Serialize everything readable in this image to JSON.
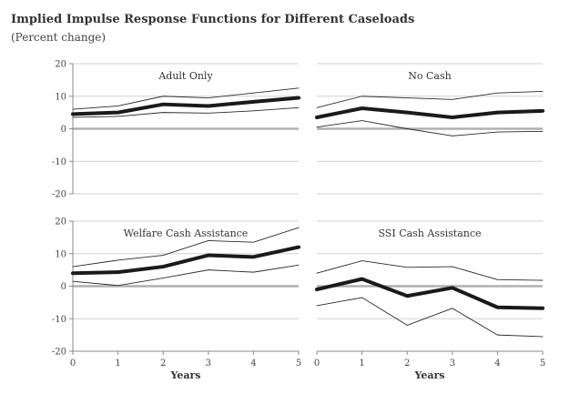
{
  "title": "Implied Impulse Response Functions for Different Caseloads",
  "subtitle": "(Percent change)",
  "chart_data": [
    {
      "type": "line",
      "title": "Adult Only",
      "xlabel": "",
      "ylabel": "",
      "x": [
        0,
        1,
        2,
        3,
        4,
        5
      ],
      "xlim": [
        0,
        5
      ],
      "ylim": [
        -20,
        20
      ],
      "yticks": [
        -20,
        -10,
        0,
        10,
        20
      ],
      "xticks": [],
      "series": [
        {
          "role": "upper",
          "values": [
            6,
            7,
            10,
            9.5,
            11,
            12.5
          ]
        },
        {
          "role": "estimate",
          "values": [
            4.5,
            5,
            7.5,
            7,
            8.3,
            9.5
          ]
        },
        {
          "role": "lower",
          "values": [
            3.5,
            3.8,
            5,
            4.8,
            5.5,
            6.5
          ]
        }
      ]
    },
    {
      "type": "line",
      "title": "No Cash",
      "xlabel": "",
      "ylabel": "",
      "x": [
        0,
        1,
        2,
        3,
        4,
        5
      ],
      "xlim": [
        0,
        5
      ],
      "ylim": [
        -20,
        20
      ],
      "yticks": [],
      "xticks": [],
      "series": [
        {
          "role": "upper",
          "values": [
            6.5,
            10,
            9.5,
            9,
            11,
            11.5
          ]
        },
        {
          "role": "estimate",
          "values": [
            3.5,
            6.3,
            5,
            3.5,
            5,
            5.5
          ]
        },
        {
          "role": "lower",
          "values": [
            0.5,
            2.5,
            0,
            -2.2,
            -1,
            -0.8
          ]
        }
      ]
    },
    {
      "type": "line",
      "title": "Welfare Cash Assistance",
      "xlabel": "Years",
      "ylabel": "",
      "x": [
        0,
        1,
        2,
        3,
        4,
        5
      ],
      "xlim": [
        0,
        5
      ],
      "ylim": [
        -20,
        20
      ],
      "yticks": [
        -20,
        -10,
        0,
        10,
        20
      ],
      "xticks": [
        0,
        1,
        2,
        3,
        4,
        5
      ],
      "series": [
        {
          "role": "upper",
          "values": [
            6,
            8,
            9.5,
            14,
            13.5,
            18
          ]
        },
        {
          "role": "estimate",
          "values": [
            4,
            4.3,
            6,
            9.5,
            9,
            12
          ]
        },
        {
          "role": "lower",
          "values": [
            1.5,
            0.2,
            2.5,
            5,
            4.3,
            6.5
          ]
        }
      ]
    },
    {
      "type": "line",
      "title": "SSI Cash Assistance",
      "xlabel": "Years",
      "ylabel": "",
      "x": [
        0,
        1,
        2,
        3,
        4,
        5
      ],
      "xlim": [
        0,
        5
      ],
      "ylim": [
        -20,
        20
      ],
      "yticks": [],
      "xticks": [
        0,
        1,
        2,
        3,
        4,
        5
      ],
      "series": [
        {
          "role": "upper",
          "values": [
            4,
            7.8,
            5.8,
            6,
            2,
            1.8
          ]
        },
        {
          "role": "estimate",
          "values": [
            -1,
            2.2,
            -3,
            -0.5,
            -6.5,
            -6.8
          ]
        },
        {
          "role": "lower",
          "values": [
            -6,
            -3.5,
            -12,
            -6.8,
            -15,
            -15.5
          ]
        }
      ]
    }
  ],
  "colors": {
    "estimate": "#1a1a1a",
    "band": "#2a2a2a",
    "zero_line": "#b0b0b0",
    "grid": "#d0d0d0",
    "axis": "#888888"
  }
}
